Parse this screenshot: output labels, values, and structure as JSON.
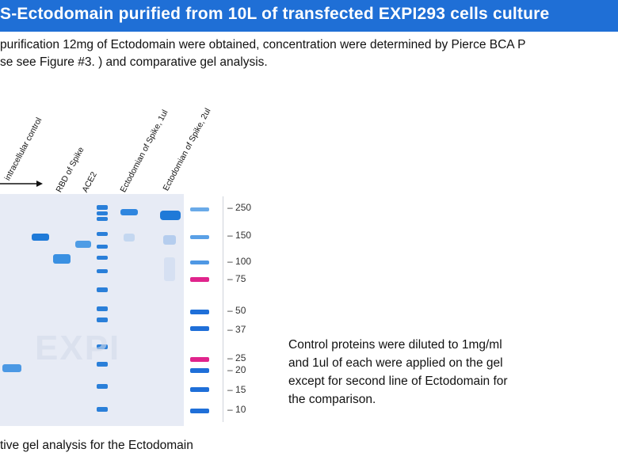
{
  "header": {
    "title": "S-Ectodomain  purified from 10L of transfected  EXPI293 cells culture"
  },
  "intro": {
    "line1": " purification 12mg of Ectodomain were obtained, concentration were determined by Pierce BCA P",
    "line2": "se see Figure #3. ) and comparative gel analysis."
  },
  "gel": {
    "lanes": [
      "intracellular control",
      "RBD of Spike",
      "ACE2",
      "Ectodomian of Spike, 1ul",
      "Ectodomian of Spike, 2ul"
    ],
    "watermark": "EXPI",
    "mw_markers": [
      "250",
      "150",
      "100",
      "75",
      "50",
      "37",
      "25",
      "20",
      "15",
      "10"
    ]
  },
  "note": {
    "line1": "Control proteins were diluted to 1mg/ml",
    "line2": "and 1ul of each were applied on the gel",
    "line3": "except for second line of Ectodomain for",
    "line4": "the   comparison."
  },
  "caption": "tive gel analysis for the Ectodomain",
  "colors": {
    "title_bar": "#1f6fd6",
    "band_blue": "#1f7ad8",
    "band_magenta": "#e0248c",
    "gel_background": "#e7ebf5"
  }
}
